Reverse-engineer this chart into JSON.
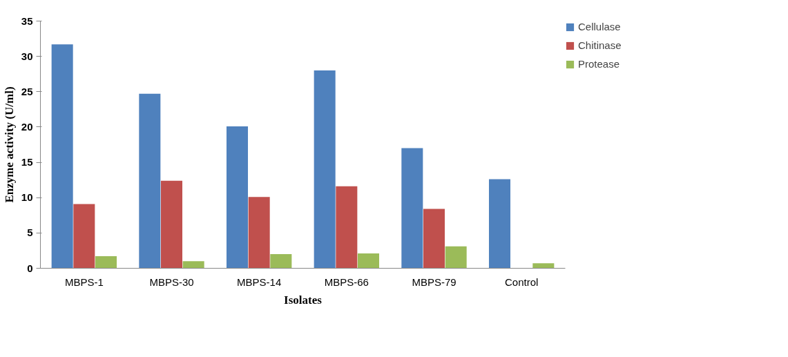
{
  "chart_data": {
    "type": "bar",
    "xlabel": "Isolates",
    "ylabel": "Enzyme activity (U/ml)",
    "categories": [
      "MBPS-1",
      "MBPS-30",
      "MBPS-14",
      "MBPS-66",
      "MBPS-79",
      "Control"
    ],
    "series": [
      {
        "name": "Cellulase",
        "color": "#4f81bd",
        "values": [
          31.7,
          24.7,
          20.1,
          28.0,
          17.0,
          12.6
        ]
      },
      {
        "name": "Chitinase",
        "color": "#c0504d",
        "values": [
          9.1,
          12.4,
          10.1,
          11.6,
          8.4,
          null
        ]
      },
      {
        "name": "Protease",
        "color": "#9bbb59",
        "values": [
          1.7,
          1.0,
          2.0,
          2.1,
          3.1,
          0.7
        ]
      }
    ],
    "ylim": [
      0,
      35
    ],
    "yticks": [
      0,
      5,
      10,
      15,
      20,
      25,
      30,
      35
    ],
    "grid": false,
    "legend": "right"
  }
}
